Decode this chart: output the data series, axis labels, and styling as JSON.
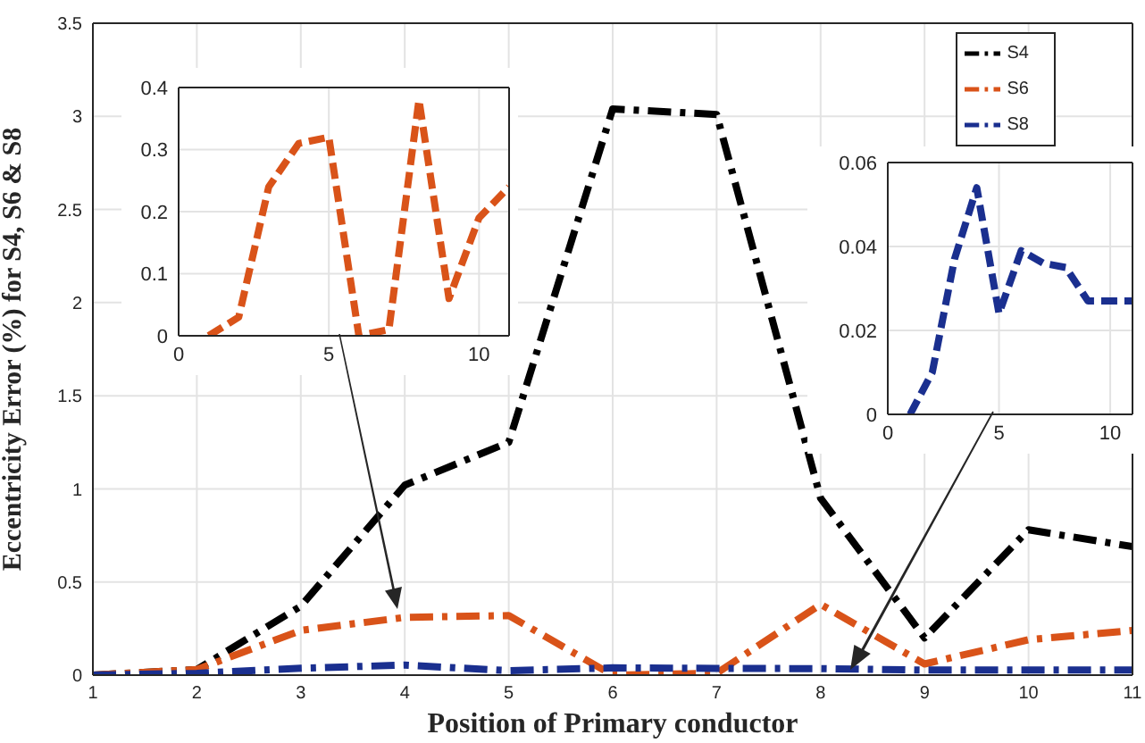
{
  "chart_data": [
    {
      "type": "line",
      "xlabel": "Position of Primary conductor",
      "ylabel": "Eccentricity Error (%) for S4, S6 & S8",
      "x": [
        1,
        2,
        3,
        4,
        5,
        6,
        7,
        8,
        9,
        10,
        11
      ],
      "xlim": [
        1,
        11
      ],
      "xticks": [
        1,
        2,
        3,
        4,
        5,
        6,
        7,
        8,
        9,
        10,
        11
      ],
      "ylim": [
        0,
        3.5
      ],
      "yticks": [
        0,
        0.5,
        1,
        1.5,
        2,
        2.5,
        3,
        3.5
      ],
      "grid": true,
      "legend": "top right",
      "line_style": "dashed",
      "marker": "none",
      "series": [
        {
          "name": "S4",
          "color": "#000000",
          "values": [
            0,
            0.03,
            0.37,
            1.02,
            1.25,
            3.04,
            3.01,
            0.95,
            0.2,
            0.78,
            0.69
          ]
        },
        {
          "name": "S6",
          "color": "#d95319",
          "values": [
            0,
            0.03,
            0.24,
            0.31,
            0.32,
            0,
            0.01,
            0.38,
            0.06,
            0.19,
            0.24
          ]
        },
        {
          "name": "S8",
          "color": "#1a2f8f",
          "values": [
            0,
            0.01,
            0.037,
            0.054,
            0.024,
            0.039,
            0.036,
            0.035,
            0.027,
            0.027,
            0.027
          ]
        }
      ]
    },
    {
      "type": "line",
      "x": [
        1,
        2,
        3,
        4,
        5,
        6,
        7,
        8,
        9,
        10,
        11
      ],
      "xlim": [
        0,
        11
      ],
      "xticks": [
        0,
        5,
        10
      ],
      "ylim": [
        0,
        0.4
      ],
      "yticks": [
        0,
        0.1,
        0.2,
        0.3,
        0.4
      ],
      "grid": true,
      "line_style": "dashed",
      "marker": "none",
      "series": [
        {
          "color": "#d95319",
          "values": [
            0,
            0.03,
            0.24,
            0.31,
            0.32,
            0,
            0.01,
            0.38,
            0.06,
            0.19,
            0.24
          ]
        }
      ]
    },
    {
      "type": "line",
      "x": [
        1,
        2,
        3,
        4,
        5,
        6,
        7,
        8,
        9,
        10,
        11
      ],
      "xlim": [
        0,
        11
      ],
      "xticks": [
        0,
        5,
        10
      ],
      "ylim": [
        0,
        0.06
      ],
      "yticks": [
        0,
        0.02,
        0.04,
        0.06
      ],
      "grid": true,
      "line_style": "dashed",
      "marker": "none",
      "series": [
        {
          "color": "#1a2f8f",
          "values": [
            0,
            0.01,
            0.037,
            0.054,
            0.024,
            0.039,
            0.036,
            0.035,
            0.027,
            0.027,
            0.027
          ]
        }
      ]
    }
  ]
}
